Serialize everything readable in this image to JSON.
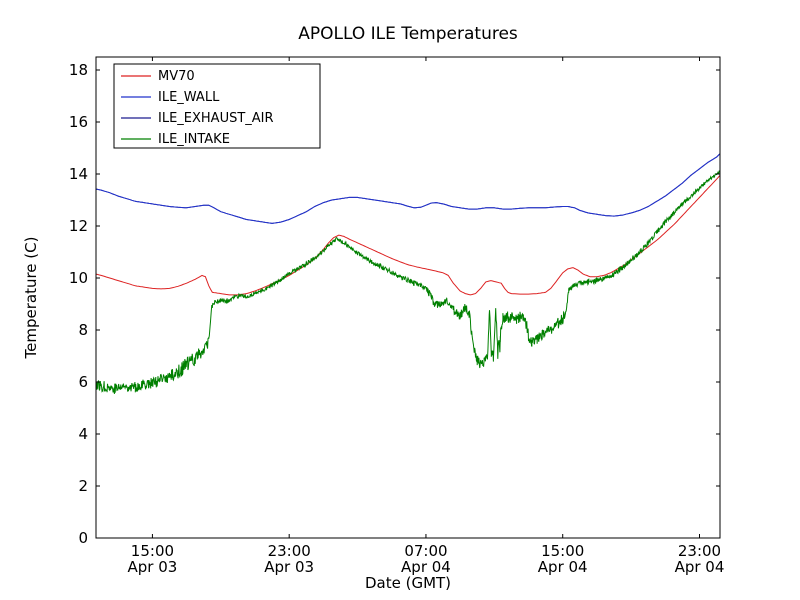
{
  "chart_data": {
    "type": "line",
    "title": "APOLLO ILE Temperatures",
    "xlabel": "Date (GMT)",
    "ylabel": "Temperature (C)",
    "xlim": [
      -0.3,
      36.2
    ],
    "ylim": [
      0,
      18.5
    ],
    "grid": false,
    "yticks": [
      0,
      2,
      4,
      6,
      8,
      10,
      12,
      14,
      16,
      18
    ],
    "xticks": [
      {
        "t": 3,
        "time": "15:00",
        "date": "Apr 03"
      },
      {
        "t": 11,
        "time": "23:00",
        "date": "Apr 03"
      },
      {
        "t": 19,
        "time": "07:00",
        "date": "Apr 04"
      },
      {
        "t": 27,
        "time": "15:00",
        "date": "Apr 04"
      },
      {
        "t": 35,
        "time": "23:00",
        "date": "Apr 04"
      }
    ],
    "x_units": "hours since Apr 03 12:00 GMT",
    "legend_position": "upper-left",
    "series": [
      {
        "name": "MV70",
        "color": "#dd2222",
        "z": 1,
        "points": [
          [
            -0.3,
            10.15
          ],
          [
            0,
            10.1
          ],
          [
            0.5,
            10.0
          ],
          [
            1,
            9.9
          ],
          [
            1.5,
            9.8
          ],
          [
            2,
            9.7
          ],
          [
            2.5,
            9.65
          ],
          [
            3,
            9.6
          ],
          [
            3.5,
            9.58
          ],
          [
            4,
            9.6
          ],
          [
            4.5,
            9.68
          ],
          [
            5,
            9.8
          ],
          [
            5.5,
            9.95
          ],
          [
            5.9,
            10.1
          ],
          [
            6.1,
            10.05
          ],
          [
            6.3,
            9.7
          ],
          [
            6.5,
            9.45
          ],
          [
            7,
            9.4
          ],
          [
            7.5,
            9.35
          ],
          [
            8,
            9.35
          ],
          [
            8.5,
            9.4
          ],
          [
            9,
            9.5
          ],
          [
            9.5,
            9.63
          ],
          [
            10,
            9.78
          ],
          [
            10.5,
            9.93
          ],
          [
            11,
            10.1
          ],
          [
            11.5,
            10.3
          ],
          [
            12,
            10.5
          ],
          [
            12.5,
            10.75
          ],
          [
            13,
            11.1
          ],
          [
            13.3,
            11.35
          ],
          [
            13.6,
            11.55
          ],
          [
            13.9,
            11.65
          ],
          [
            14.2,
            11.6
          ],
          [
            14.5,
            11.5
          ],
          [
            15,
            11.35
          ],
          [
            15.5,
            11.2
          ],
          [
            16,
            11.05
          ],
          [
            16.5,
            10.9
          ],
          [
            17,
            10.75
          ],
          [
            17.5,
            10.62
          ],
          [
            18,
            10.5
          ],
          [
            18.5,
            10.42
          ],
          [
            19,
            10.35
          ],
          [
            19.5,
            10.28
          ],
          [
            20,
            10.2
          ],
          [
            20.3,
            10.1
          ],
          [
            20.6,
            9.8
          ],
          [
            21,
            9.5
          ],
          [
            21.3,
            9.4
          ],
          [
            21.6,
            9.35
          ],
          [
            21.9,
            9.4
          ],
          [
            22.2,
            9.6
          ],
          [
            22.5,
            9.85
          ],
          [
            22.8,
            9.9
          ],
          [
            23.1,
            9.85
          ],
          [
            23.4,
            9.8
          ],
          [
            23.6,
            9.6
          ],
          [
            23.8,
            9.45
          ],
          [
            24,
            9.4
          ],
          [
            24.5,
            9.38
          ],
          [
            25,
            9.38
          ],
          [
            25.5,
            9.4
          ],
          [
            26,
            9.45
          ],
          [
            26.3,
            9.6
          ],
          [
            26.6,
            9.85
          ],
          [
            27,
            10.2
          ],
          [
            27.3,
            10.35
          ],
          [
            27.6,
            10.4
          ],
          [
            27.9,
            10.3
          ],
          [
            28.2,
            10.15
          ],
          [
            28.6,
            10.05
          ],
          [
            29,
            10.05
          ],
          [
            29.4,
            10.1
          ],
          [
            29.8,
            10.2
          ],
          [
            30.2,
            10.35
          ],
          [
            30.6,
            10.5
          ],
          [
            31,
            10.7
          ],
          [
            31.5,
            10.95
          ],
          [
            32,
            11.2
          ],
          [
            32.5,
            11.45
          ],
          [
            33,
            11.75
          ],
          [
            33.5,
            12.05
          ],
          [
            34,
            12.4
          ],
          [
            34.5,
            12.75
          ],
          [
            35,
            13.1
          ],
          [
            35.5,
            13.45
          ],
          [
            36,
            13.8
          ],
          [
            36.2,
            13.95
          ]
        ]
      },
      {
        "name": "ILE_WALL",
        "color": "#2233cc",
        "z": 3,
        "points": [
          [
            -0.3,
            13.42
          ],
          [
            0,
            13.38
          ],
          [
            0.5,
            13.28
          ],
          [
            1,
            13.15
          ],
          [
            1.5,
            13.05
          ],
          [
            2,
            12.95
          ],
          [
            2.5,
            12.9
          ],
          [
            3,
            12.85
          ],
          [
            3.5,
            12.8
          ],
          [
            4,
            12.75
          ],
          [
            4.5,
            12.72
          ],
          [
            5,
            12.7
          ],
          [
            5.5,
            12.75
          ],
          [
            6,
            12.8
          ],
          [
            6.3,
            12.8
          ],
          [
            6.6,
            12.7
          ],
          [
            7,
            12.55
          ],
          [
            7.5,
            12.45
          ],
          [
            8,
            12.35
          ],
          [
            8.5,
            12.25
          ],
          [
            9,
            12.2
          ],
          [
            9.5,
            12.15
          ],
          [
            10,
            12.1
          ],
          [
            10.5,
            12.15
          ],
          [
            11,
            12.25
          ],
          [
            11.5,
            12.4
          ],
          [
            12,
            12.55
          ],
          [
            12.5,
            12.75
          ],
          [
            13,
            12.9
          ],
          [
            13.5,
            13.0
          ],
          [
            14,
            13.05
          ],
          [
            14.5,
            13.1
          ],
          [
            15,
            13.1
          ],
          [
            15.5,
            13.05
          ],
          [
            16,
            13.0
          ],
          [
            16.5,
            12.95
          ],
          [
            17,
            12.9
          ],
          [
            17.5,
            12.85
          ],
          [
            18,
            12.75
          ],
          [
            18.3,
            12.7
          ],
          [
            18.7,
            12.72
          ],
          [
            19,
            12.8
          ],
          [
            19.3,
            12.88
          ],
          [
            19.6,
            12.9
          ],
          [
            20,
            12.85
          ],
          [
            20.5,
            12.75
          ],
          [
            21,
            12.7
          ],
          [
            21.5,
            12.65
          ],
          [
            22,
            12.65
          ],
          [
            22.5,
            12.7
          ],
          [
            23,
            12.7
          ],
          [
            23.5,
            12.65
          ],
          [
            24,
            12.65
          ],
          [
            24.5,
            12.68
          ],
          [
            25,
            12.7
          ],
          [
            25.5,
            12.7
          ],
          [
            26,
            12.7
          ],
          [
            26.5,
            12.73
          ],
          [
            27,
            12.75
          ],
          [
            27.3,
            12.75
          ],
          [
            27.7,
            12.7
          ],
          [
            28,
            12.6
          ],
          [
            28.5,
            12.5
          ],
          [
            29,
            12.45
          ],
          [
            29.5,
            12.4
          ],
          [
            30,
            12.38
          ],
          [
            30.5,
            12.42
          ],
          [
            31,
            12.5
          ],
          [
            31.5,
            12.6
          ],
          [
            32,
            12.75
          ],
          [
            32.5,
            12.95
          ],
          [
            33,
            13.15
          ],
          [
            33.5,
            13.4
          ],
          [
            34,
            13.65
          ],
          [
            34.5,
            13.95
          ],
          [
            35,
            14.2
          ],
          [
            35.5,
            14.45
          ],
          [
            36,
            14.65
          ],
          [
            36.2,
            14.78
          ]
        ]
      },
      {
        "name": "ILE_EXHAUST_AIR",
        "color": "#1c1c8f",
        "z": 2,
        "same_as": "ILE_WALL",
        "points": []
      },
      {
        "name": "ILE_INTAKE",
        "color": "#008000",
        "z": 4,
        "seed": 77,
        "points": [
          [
            -0.3,
            5.9,
            0.22
          ],
          [
            0,
            5.85,
            0.22
          ],
          [
            0.4,
            5.8,
            0.2
          ],
          [
            0.8,
            5.75,
            0.22
          ],
          [
            1.2,
            5.8,
            0.2
          ],
          [
            1.6,
            5.85,
            0.22
          ],
          [
            2,
            5.8,
            0.2
          ],
          [
            2.4,
            5.9,
            0.2
          ],
          [
            2.8,
            5.95,
            0.22
          ],
          [
            3.2,
            6.0,
            0.22
          ],
          [
            3.6,
            6.1,
            0.22
          ],
          [
            4,
            6.2,
            0.25
          ],
          [
            4.4,
            6.35,
            0.28
          ],
          [
            4.8,
            6.55,
            0.3
          ],
          [
            5.2,
            6.75,
            0.3
          ],
          [
            5.6,
            7.0,
            0.3
          ],
          [
            6,
            7.25,
            0.25
          ],
          [
            6.3,
            7.5,
            0.22
          ],
          [
            6.45,
            8.85,
            0.12
          ],
          [
            6.6,
            9.05,
            0.08
          ],
          [
            7,
            9.15,
            0.08
          ],
          [
            7.4,
            9.1,
            0.1
          ],
          [
            7.8,
            9.25,
            0.08
          ],
          [
            8.2,
            9.3,
            0.08
          ],
          [
            8.6,
            9.3,
            0.07
          ],
          [
            9,
            9.4,
            0.07
          ],
          [
            9.5,
            9.55,
            0.08
          ],
          [
            10,
            9.7,
            0.08
          ],
          [
            10.5,
            9.95,
            0.08
          ],
          [
            11,
            10.15,
            0.08
          ],
          [
            11.5,
            10.35,
            0.08
          ],
          [
            12,
            10.55,
            0.08
          ],
          [
            12.5,
            10.78,
            0.08
          ],
          [
            13,
            11.05,
            0.08
          ],
          [
            13.4,
            11.3,
            0.07
          ],
          [
            13.75,
            11.5,
            0.06
          ],
          [
            14.1,
            11.4,
            0.07
          ],
          [
            14.5,
            11.2,
            0.08
          ],
          [
            15,
            10.95,
            0.08
          ],
          [
            15.5,
            10.75,
            0.08
          ],
          [
            16,
            10.55,
            0.09
          ],
          [
            16.5,
            10.4,
            0.1
          ],
          [
            17,
            10.22,
            0.1
          ],
          [
            17.5,
            10.05,
            0.1
          ],
          [
            18,
            9.9,
            0.1
          ],
          [
            18.5,
            9.75,
            0.1
          ],
          [
            19,
            9.6,
            0.1
          ],
          [
            19.3,
            9.3,
            0.14
          ],
          [
            19.5,
            8.95,
            0.14
          ],
          [
            19.8,
            9.0,
            0.12
          ],
          [
            20.2,
            9.1,
            0.12
          ],
          [
            20.6,
            8.8,
            0.15
          ],
          [
            21,
            8.55,
            0.18
          ],
          [
            21.3,
            8.9,
            0.15
          ],
          [
            21.55,
            8.55,
            0.2
          ],
          [
            21.8,
            7.3,
            0.28
          ],
          [
            22,
            6.85,
            0.25
          ],
          [
            22.2,
            6.7,
            0.2
          ],
          [
            22.4,
            6.75,
            0.2
          ],
          [
            22.6,
            6.9,
            0.2
          ],
          [
            22.72,
            8.8,
            0.1
          ],
          [
            22.82,
            7.0,
            0.2
          ],
          [
            22.95,
            7.0,
            0.25
          ],
          [
            23.08,
            8.85,
            0.1
          ],
          [
            23.2,
            7.1,
            0.3
          ],
          [
            23.35,
            7.6,
            0.4
          ],
          [
            23.5,
            8.45,
            0.25
          ],
          [
            23.7,
            8.5,
            0.2
          ],
          [
            23.9,
            8.45,
            0.2
          ],
          [
            24.1,
            8.55,
            0.2
          ],
          [
            24.3,
            8.4,
            0.28
          ],
          [
            24.5,
            8.5,
            0.2
          ],
          [
            24.7,
            8.55,
            0.2
          ],
          [
            24.9,
            8.2,
            0.3
          ],
          [
            25.05,
            7.5,
            0.2
          ],
          [
            25.2,
            7.55,
            0.2
          ],
          [
            25.5,
            7.65,
            0.2
          ],
          [
            25.8,
            7.8,
            0.2
          ],
          [
            26.1,
            7.95,
            0.2
          ],
          [
            26.5,
            8.1,
            0.2
          ],
          [
            26.9,
            8.35,
            0.25
          ],
          [
            27.15,
            8.6,
            0.2
          ],
          [
            27.35,
            9.55,
            0.1
          ],
          [
            27.6,
            9.7,
            0.08
          ],
          [
            28,
            9.8,
            0.09
          ],
          [
            28.5,
            9.85,
            0.1
          ],
          [
            29,
            9.9,
            0.11
          ],
          [
            29.5,
            10.0,
            0.1
          ],
          [
            30,
            10.15,
            0.1
          ],
          [
            30.5,
            10.4,
            0.1
          ],
          [
            31,
            10.7,
            0.1
          ],
          [
            31.5,
            11.0,
            0.1
          ],
          [
            32,
            11.35,
            0.1
          ],
          [
            32.5,
            11.75,
            0.1
          ],
          [
            33,
            12.15,
            0.1
          ],
          [
            33.5,
            12.5,
            0.09
          ],
          [
            34,
            12.85,
            0.08
          ],
          [
            34.5,
            13.15,
            0.08
          ],
          [
            35,
            13.45,
            0.07
          ],
          [
            35.5,
            13.75,
            0.06
          ],
          [
            36,
            14.0,
            0.05
          ],
          [
            36.2,
            14.1,
            0.05
          ]
        ]
      }
    ]
  }
}
